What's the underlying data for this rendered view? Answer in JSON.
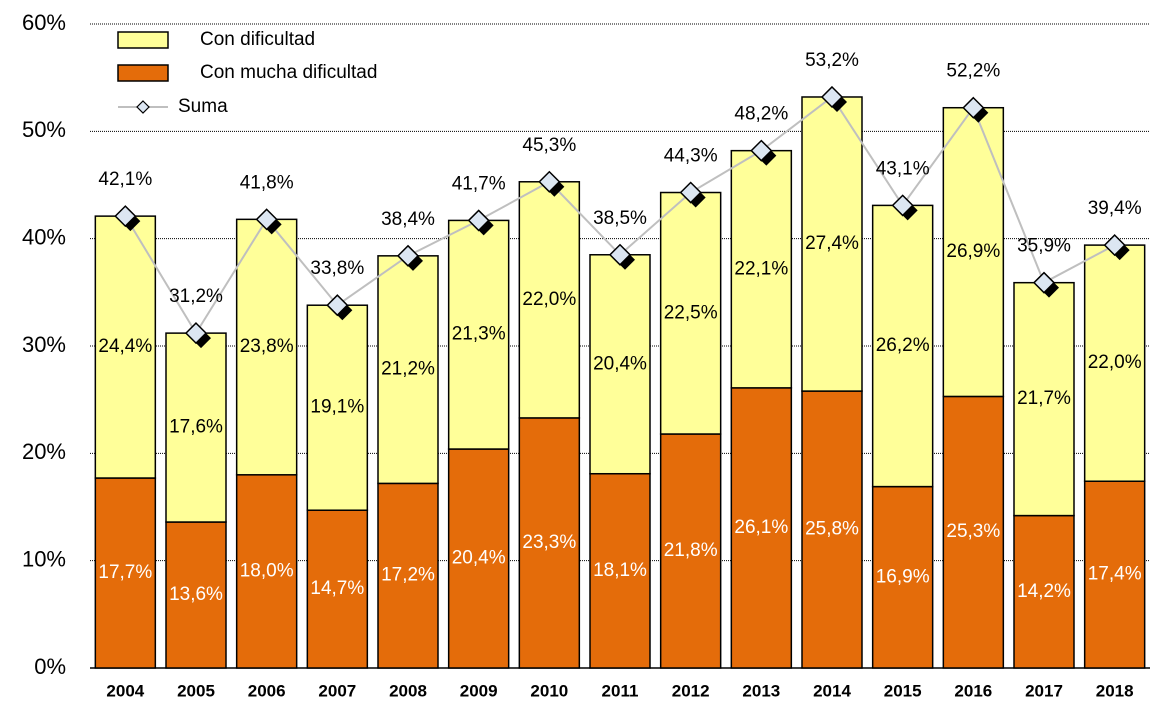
{
  "chart_data": {
    "type": "bar",
    "stacked": true,
    "categories": [
      "2004",
      "2005",
      "2006",
      "2007",
      "2008",
      "2009",
      "2010",
      "2011",
      "2012",
      "2013",
      "2014",
      "2015",
      "2016",
      "2017",
      "2018"
    ],
    "series": [
      {
        "name": "Con dificultad",
        "color": "#ffff99",
        "values": [
          24.4,
          17.6,
          23.8,
          19.1,
          21.2,
          21.3,
          22.0,
          20.4,
          22.5,
          22.1,
          27.4,
          26.2,
          26.9,
          21.7,
          22.0
        ],
        "value_labels": [
          "24,4%",
          "17,6%",
          "23,8%",
          "19,1%",
          "21,2%",
          "21,3%",
          "22,0%",
          "20,4%",
          "22,5%",
          "22,1%",
          "27,4%",
          "26,2%",
          "26,9%",
          "21,7%",
          "22,0%"
        ]
      },
      {
        "name": "Con mucha dificultad",
        "color": "#e46c0a",
        "values": [
          17.7,
          13.6,
          18.0,
          14.7,
          17.2,
          20.4,
          23.3,
          18.1,
          21.8,
          26.1,
          25.8,
          16.9,
          25.3,
          14.2,
          17.4
        ],
        "value_labels": [
          "17,7%",
          "13,6%",
          "18,0%",
          "14,7%",
          "17,2%",
          "20,4%",
          "23,3%",
          "18,1%",
          "21,8%",
          "26,1%",
          "25,8%",
          "16,9%",
          "25,3%",
          "14,2%",
          "17,4%"
        ]
      },
      {
        "name": "Suma",
        "type": "line",
        "color": "#bfbfbf",
        "values": [
          42.1,
          31.2,
          41.8,
          33.8,
          38.4,
          41.7,
          45.3,
          38.5,
          44.3,
          48.2,
          53.2,
          43.1,
          52.2,
          35.9,
          39.4
        ],
        "value_labels": [
          "42,1%",
          "31,2%",
          "41,8%",
          "33,8%",
          "38,4%",
          "41,7%",
          "45,3%",
          "38,5%",
          "44,3%",
          "48,2%",
          "53,2%",
          "43,1%",
          "52,2%",
          "35,9%",
          "39,4%"
        ]
      }
    ],
    "ylim": [
      0,
      60
    ],
    "yticks": [
      {
        "value": 0,
        "label": "0%"
      },
      {
        "value": 10,
        "label": "10%"
      },
      {
        "value": 20,
        "label": "20%"
      },
      {
        "value": 30,
        "label": "30%"
      },
      {
        "value": 40,
        "label": "40%"
      },
      {
        "value": 50,
        "label": "50%"
      },
      {
        "value": 60,
        "label": "60%"
      }
    ],
    "grid": true,
    "legend": "top-left"
  }
}
